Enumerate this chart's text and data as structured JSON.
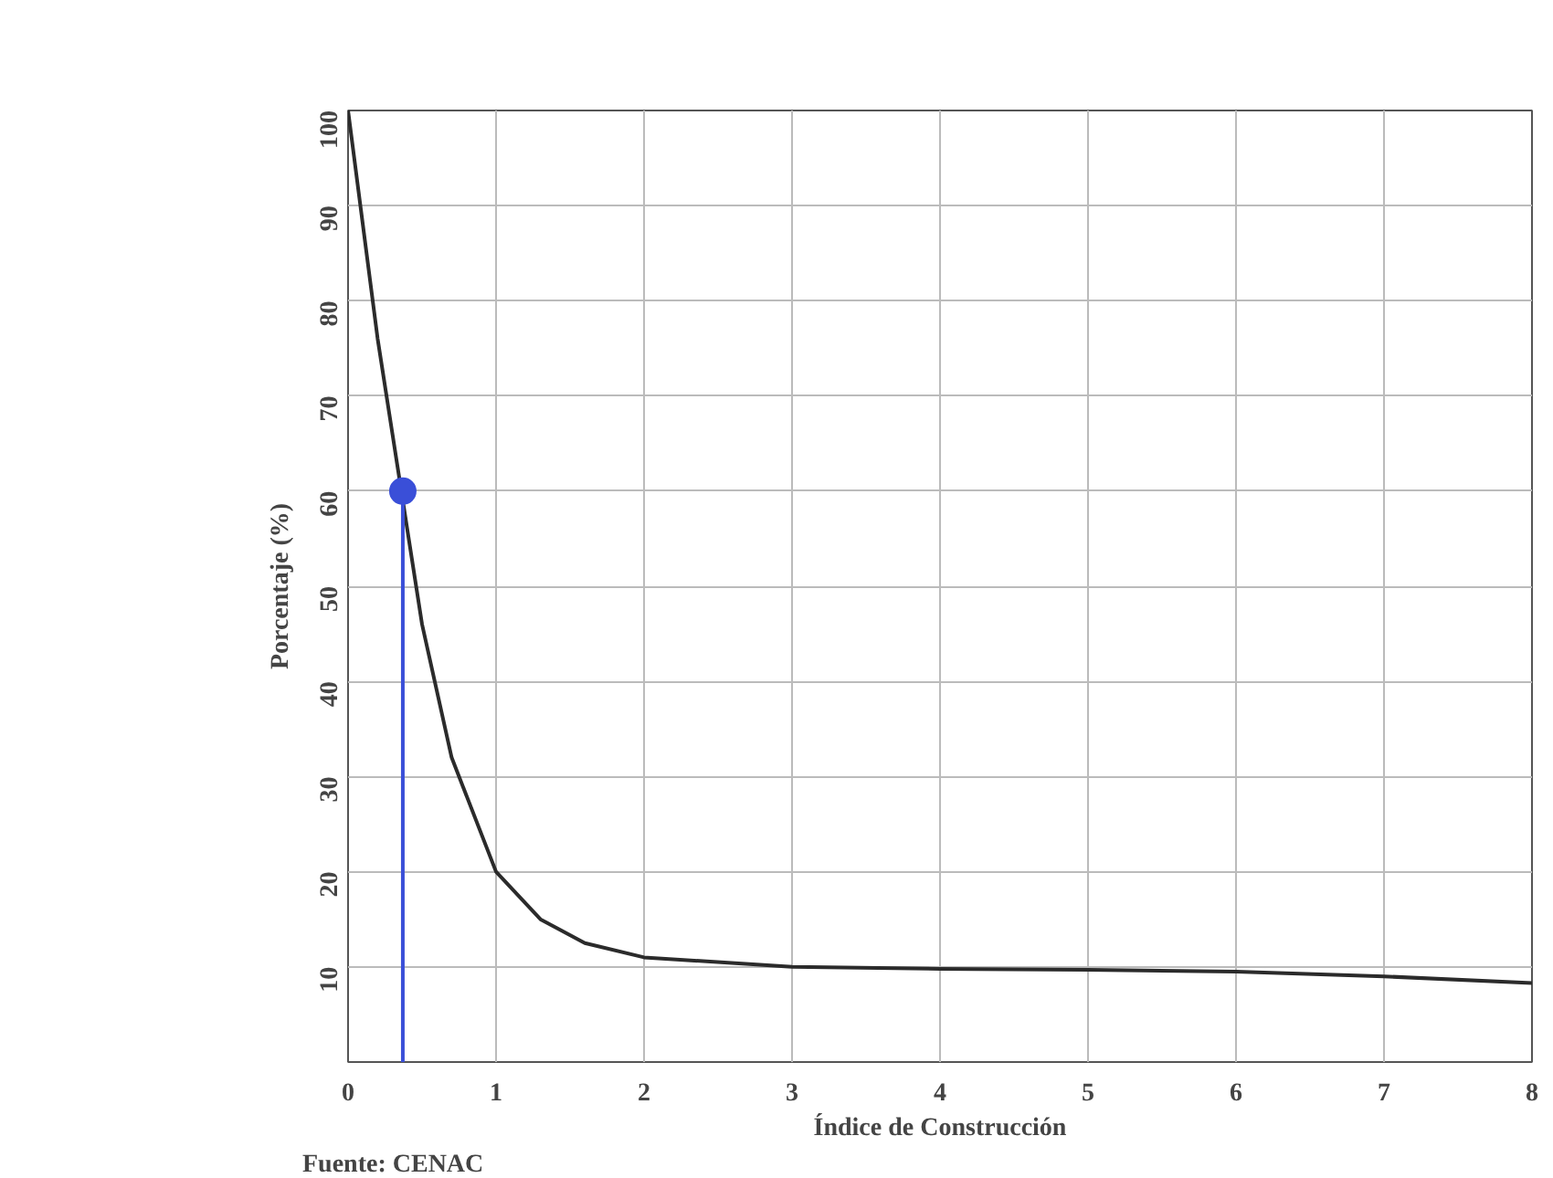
{
  "chart_data": {
    "type": "line",
    "xlabel": "Índice de Construcción",
    "ylabel": "Porcentaje (%)",
    "annotations": [
      "Fuente: CENAC"
    ],
    "xlim": [
      0,
      8
    ],
    "ylim": [
      0,
      100
    ],
    "xticks": [
      0,
      1,
      2,
      3,
      4,
      5,
      6,
      7,
      8
    ],
    "yticks": [
      10,
      20,
      30,
      40,
      50,
      60,
      70,
      80,
      90,
      100
    ],
    "grid": true,
    "series": [
      {
        "color": "#2b2b2b",
        "x": [
          0,
          0.1,
          0.2,
          0.3,
          0.5,
          0.7,
          1.0,
          1.3,
          1.6,
          2,
          3,
          4,
          5,
          6,
          7,
          8
        ],
        "values": [
          100,
          88,
          76,
          66,
          46,
          32,
          20,
          15,
          12.5,
          11,
          10,
          9.8,
          9.7,
          9.5,
          9,
          8.3
        ]
      },
      {
        "type": "line",
        "color": "#3a4fd8",
        "x": [
          0.37,
          0.37
        ],
        "values": [
          0,
          60
        ]
      },
      {
        "type": "scatter",
        "color": "#3a4fd8",
        "x": [
          0.37
        ],
        "values": [
          60
        ],
        "marker": "circle"
      }
    ]
  }
}
